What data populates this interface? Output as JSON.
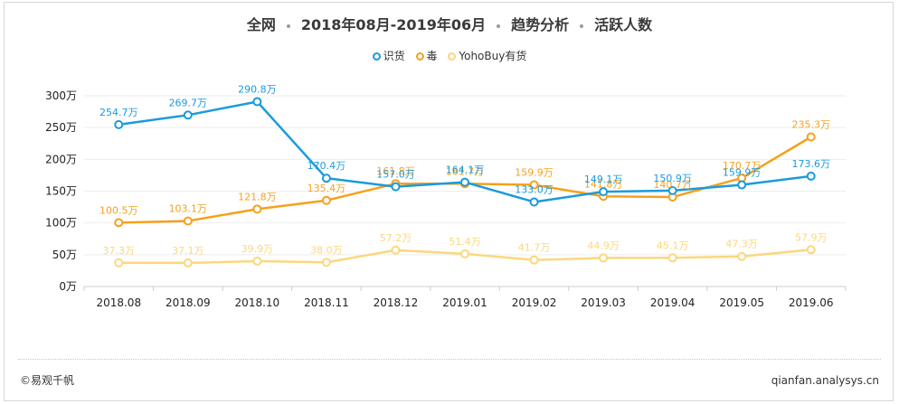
{
  "header": {
    "part1": "全网",
    "part2": "2018年08月-2019年06月",
    "part3": "趋势分析",
    "part4": "活跃人数"
  },
  "footer": {
    "copyright": "©易观千帆",
    "site": "qianfan.analysys.cn"
  },
  "colors": {
    "series1": "#1a9bdb",
    "series2": "#f5a11c",
    "series3": "#fbd77d",
    "grid": "#eeeeee",
    "axis": "#cccccc"
  },
  "chart_data": {
    "type": "line",
    "title": "",
    "xlabel": "",
    "ylabel": "",
    "ylim": [
      0,
      300
    ],
    "unit": "万",
    "y_ticks": [
      "0万",
      "50万",
      "100万",
      "150万",
      "200万",
      "250万",
      "300万"
    ],
    "y_tick_values": [
      0,
      50,
      100,
      150,
      200,
      250,
      300
    ],
    "legend_position": "top-center",
    "categories": [
      "2018.08",
      "2018.09",
      "2018.10",
      "2018.11",
      "2018.12",
      "2019.01",
      "2019.02",
      "2019.03",
      "2019.04",
      "2019.05",
      "2019.06"
    ],
    "series": [
      {
        "name": "识货",
        "color": "#1a9bdb",
        "values": [
          254.7,
          269.7,
          290.8,
          170.4,
          157.0,
          164.1,
          133.0,
          149.1,
          150.9,
          159.9,
          173.6
        ],
        "labels": [
          "254.7万",
          "269.7万",
          "290.8万",
          "170.4万",
          "157.0万",
          "164.1万",
          "133.0万",
          "149.1万",
          "150.9万",
          "159.9万",
          "173.6万"
        ]
      },
      {
        "name": "毒",
        "color": "#f5a11c",
        "values": [
          100.5,
          103.1,
          121.8,
          135.4,
          161.8,
          161.7,
          159.9,
          141.8,
          140.7,
          170.7,
          235.3
        ],
        "labels": [
          "100.5万",
          "103.1万",
          "121.8万",
          "135.4万",
          "161.8万",
          "161.7万",
          "159.9万",
          "141.8万",
          "140.7万",
          "170.7万",
          "235.3万"
        ]
      },
      {
        "name": "YohoBuy有货",
        "color": "#fbd77d",
        "values": [
          37.3,
          37.1,
          39.9,
          38.0,
          57.2,
          51.4,
          41.7,
          44.9,
          45.1,
          47.3,
          57.9
        ],
        "labels": [
          "37.3万",
          "37.1万",
          "39.9万",
          "38.0万",
          "57.2万",
          "51.4万",
          "41.7万",
          "44.9万",
          "45.1万",
          "47.3万",
          "57.9万"
        ]
      }
    ]
  }
}
